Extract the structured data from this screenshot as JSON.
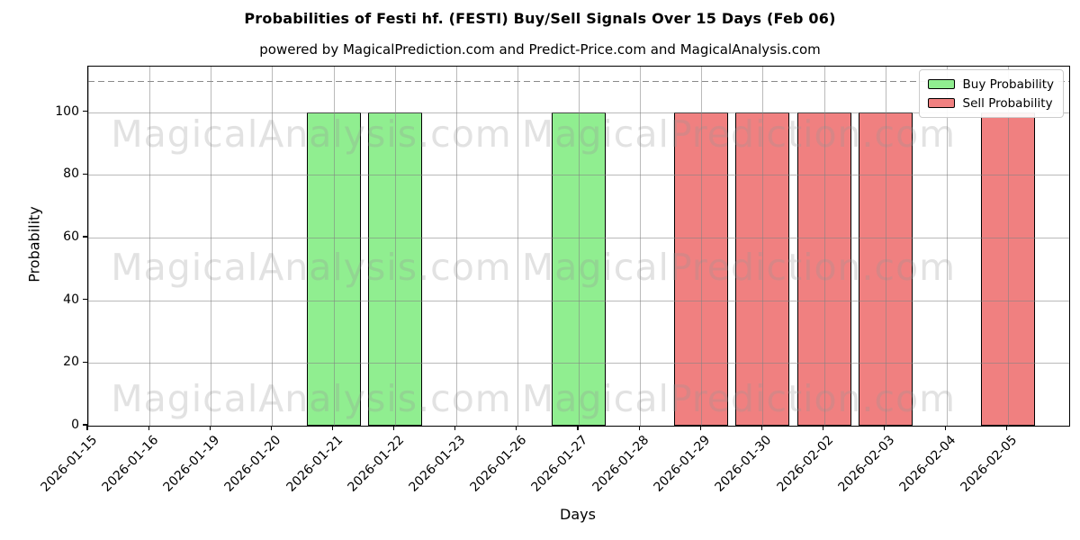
{
  "title": "Probabilities of Festi hf. (FESTI) Buy/Sell Signals Over 15 Days (Feb 06)",
  "subtitle": "powered by MagicalPrediction.com and Predict-Price.com and MagicalAnalysis.com",
  "xlabel": "Days",
  "ylabel": "Probability",
  "watermarks": {
    "left_text": "MagicalAnalysis.com",
    "right_text": "MagicalPrediction.com"
  },
  "legend": {
    "position": "upper right",
    "items": [
      {
        "label": "Buy Probability",
        "color": "#90ee90"
      },
      {
        "label": "Sell Probability",
        "color": "#f08080"
      }
    ]
  },
  "chart_data": {
    "type": "bar",
    "title": "Probabilities of Festi hf. (FESTI) Buy/Sell Signals Over 15 Days (Feb 06)",
    "xlabel": "Days",
    "ylabel": "Probability",
    "categories": [
      "2026-01-15",
      "2026-01-16",
      "2026-01-19",
      "2026-01-20",
      "2026-01-21",
      "2026-01-22",
      "2026-01-23",
      "2026-01-26",
      "2026-01-27",
      "2026-01-28",
      "2026-01-29",
      "2026-01-30",
      "2026-02-02",
      "2026-02-03",
      "2026-02-04",
      "2026-02-05"
    ],
    "series": [
      {
        "name": "Buy Probability",
        "color": "#90ee90",
        "values": [
          0,
          0,
          0,
          0,
          100,
          100,
          0,
          0,
          100,
          0,
          0,
          0,
          0,
          0,
          0,
          0
        ]
      },
      {
        "name": "Sell Probability",
        "color": "#f08080",
        "values": [
          0,
          0,
          0,
          0,
          0,
          0,
          0,
          0,
          0,
          0,
          100,
          100,
          100,
          100,
          0,
          100
        ]
      }
    ],
    "yticks": [
      0,
      20,
      40,
      60,
      80,
      100
    ],
    "ylim": [
      0,
      114.6
    ],
    "threshold_line_y": 110,
    "grid": true,
    "bar_edge_color": "#000000",
    "background": "#ffffff"
  }
}
